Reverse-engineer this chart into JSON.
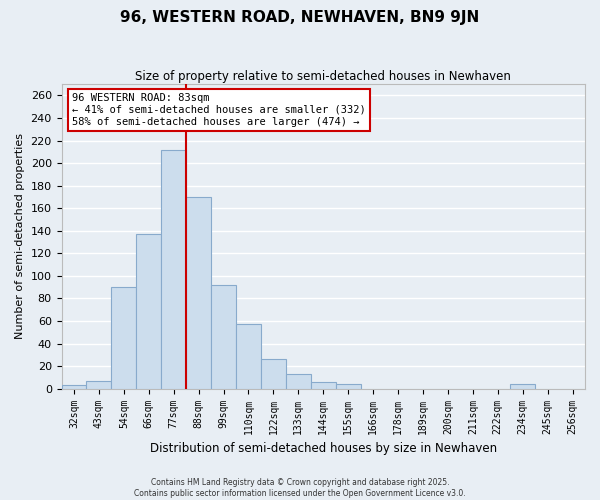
{
  "title": "96, WESTERN ROAD, NEWHAVEN, BN9 9JN",
  "subtitle": "Size of property relative to semi-detached houses in Newhaven",
  "xlabel": "Distribution of semi-detached houses by size in Newhaven",
  "ylabel": "Number of semi-detached properties",
  "bar_color": "#ccdded",
  "bar_edge_color": "#88aacc",
  "background_color": "#e8eef4",
  "grid_color": "#ffffff",
  "categories": [
    "32sqm",
    "43sqm",
    "54sqm",
    "66sqm",
    "77sqm",
    "88sqm",
    "99sqm",
    "110sqm",
    "122sqm",
    "133sqm",
    "144sqm",
    "155sqm",
    "166sqm",
    "178sqm",
    "189sqm",
    "200sqm",
    "211sqm",
    "222sqm",
    "234sqm",
    "245sqm",
    "256sqm"
  ],
  "values": [
    3,
    7,
    90,
    137,
    212,
    170,
    92,
    57,
    26,
    13,
    6,
    4,
    0,
    0,
    0,
    0,
    0,
    0,
    4,
    0,
    0
  ],
  "ylim": [
    0,
    270
  ],
  "yticks": [
    0,
    20,
    40,
    60,
    80,
    100,
    120,
    140,
    160,
    180,
    200,
    220,
    240,
    260
  ],
  "vline_x": 4.5,
  "vline_color": "#cc0000",
  "annotation_title": "96 WESTERN ROAD: 83sqm",
  "annotation_line1": "← 41% of semi-detached houses are smaller (332)",
  "annotation_line2": "58% of semi-detached houses are larger (474) →",
  "annotation_box_facecolor": "white",
  "annotation_box_edgecolor": "#cc0000",
  "footer1": "Contains HM Land Registry data © Crown copyright and database right 2025.",
  "footer2": "Contains public sector information licensed under the Open Government Licence v3.0."
}
